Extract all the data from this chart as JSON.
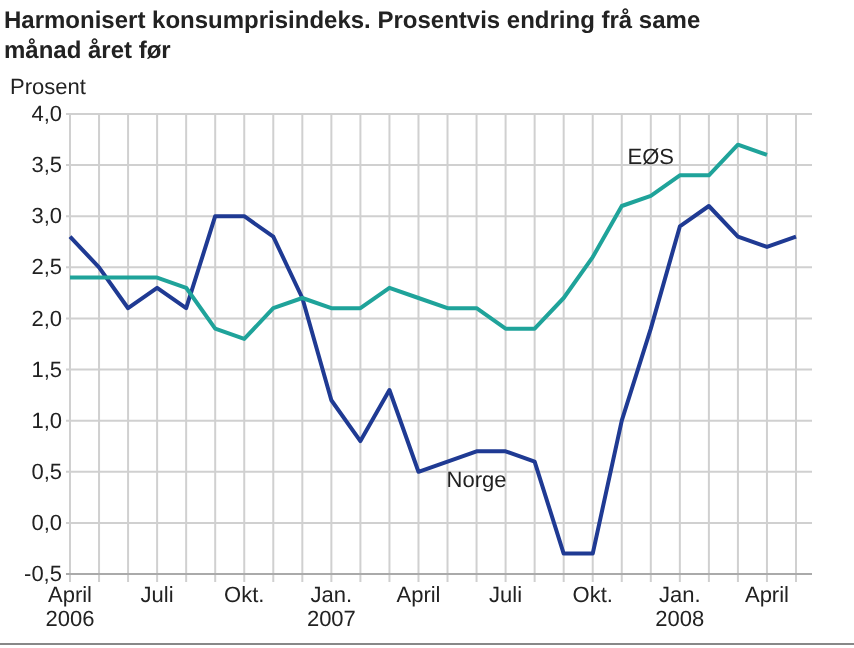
{
  "chart_data": {
    "type": "line",
    "title": "Harmonisert konsumprisindeks. Prosentvis endring frå same månad året før",
    "ylabel": "Prosent",
    "categories": [
      "April 2006",
      null,
      null,
      "Juli",
      null,
      null,
      "Okt.",
      null,
      null,
      "Jan. 2007",
      null,
      null,
      "April",
      null,
      null,
      "Juli",
      null,
      null,
      "Okt.",
      null,
      null,
      "Jan. 2008",
      null,
      null,
      "April",
      null
    ],
    "series": [
      {
        "name": "Norge",
        "color": "#1f3a93",
        "values": [
          2.8,
          2.5,
          2.1,
          2.3,
          2.1,
          3.0,
          3.0,
          2.8,
          2.2,
          1.2,
          0.8,
          1.3,
          0.5,
          0.6,
          0.7,
          0.7,
          0.6,
          -0.3,
          -0.3,
          1.0,
          1.9,
          2.9,
          3.1,
          2.8,
          2.7,
          2.8
        ]
      },
      {
        "name": "EØS",
        "color": "#1fa39a",
        "values": [
          2.4,
          2.4,
          2.4,
          2.4,
          2.3,
          1.9,
          1.8,
          2.1,
          2.2,
          2.1,
          2.1,
          2.3,
          2.2,
          2.1,
          2.1,
          1.9,
          1.9,
          2.2,
          2.6,
          3.1,
          3.2,
          3.4,
          3.4,
          3.7,
          3.6,
          null
        ]
      }
    ],
    "ylim": [
      -0.5,
      4.0
    ],
    "yticks": [
      {
        "value": -0.5,
        "label": "-0,5"
      },
      {
        "value": 0,
        "label": "0,0"
      },
      {
        "value": 0.5,
        "label": "0,5"
      },
      {
        "value": 1,
        "label": "1,0"
      },
      {
        "value": 1.5,
        "label": "1,5"
      },
      {
        "value": 2,
        "label": "2,0"
      },
      {
        "value": 2.5,
        "label": "2,5"
      },
      {
        "value": 3,
        "label": "3,0"
      },
      {
        "value": 3.5,
        "label": "3,5"
      },
      {
        "value": 4,
        "label": "4,0"
      }
    ],
    "grid": true
  }
}
